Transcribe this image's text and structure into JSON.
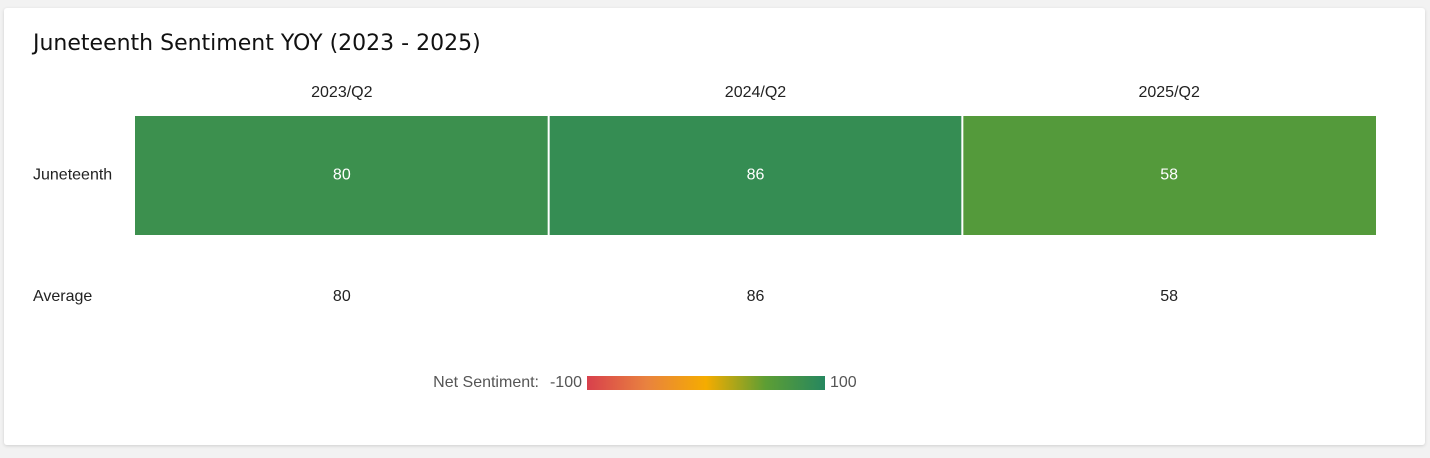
{
  "chart_data": {
    "type": "heatmap",
    "title": "Juneteenth Sentiment YOY (2023 - 2025)",
    "x_categories": [
      "2023/Q2",
      "2024/Q2",
      "2025/Q2"
    ],
    "y_categories": [
      "Juneteenth"
    ],
    "values": [
      [
        80,
        86,
        58
      ]
    ],
    "summary_row": {
      "label": "Average",
      "values": [
        80,
        86,
        58
      ]
    },
    "legend": {
      "label": "Net Sentiment:",
      "min": -100,
      "max": 100
    },
    "colorscale": [
      "#d8404c",
      "#e9823f",
      "#f5ac00",
      "#5d9e34",
      "#26875f"
    ]
  }
}
